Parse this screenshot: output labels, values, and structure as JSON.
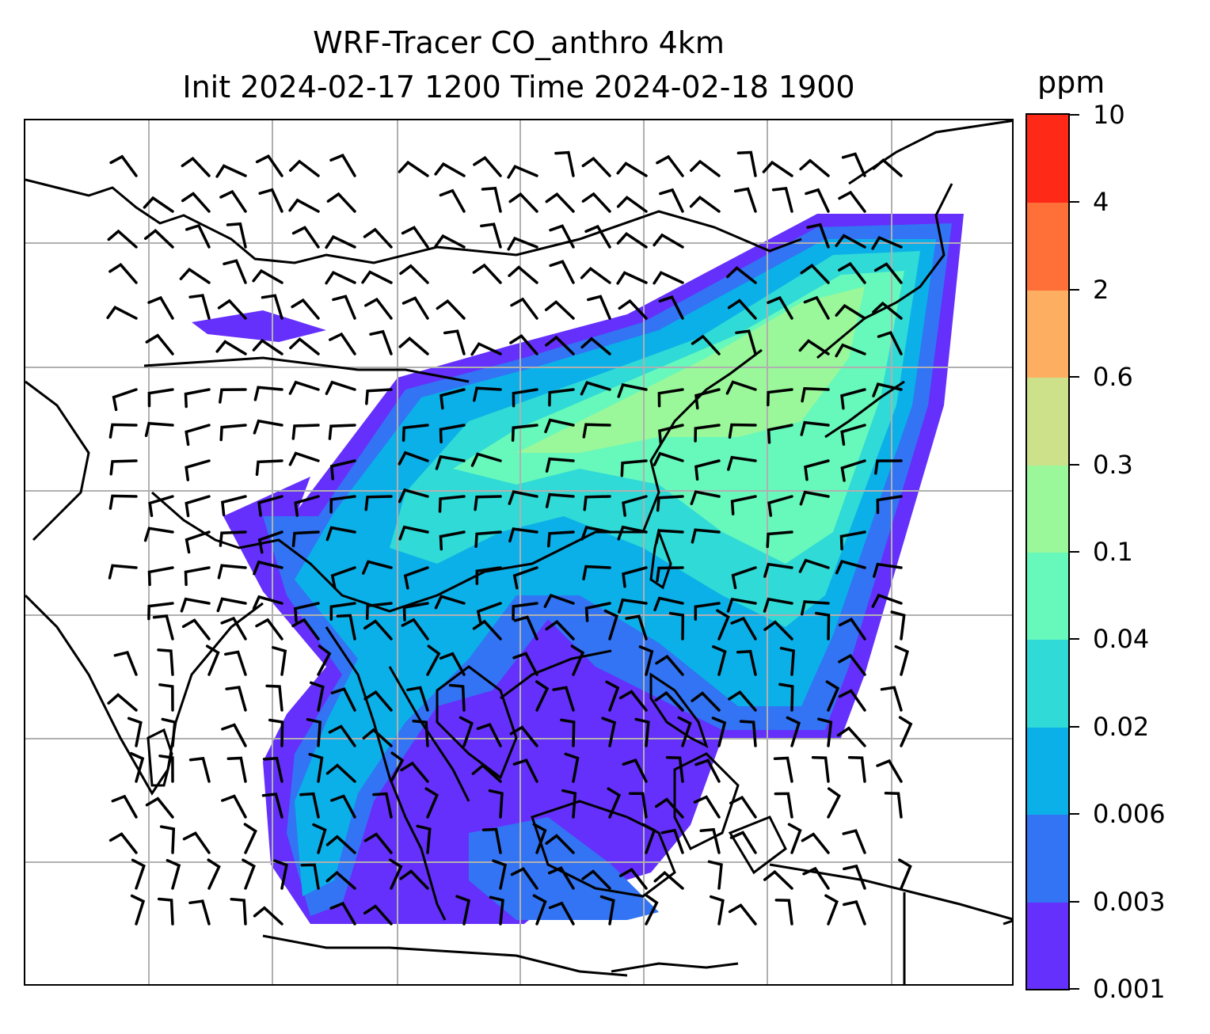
{
  "title": {
    "line1": "WRF-Tracer CO_anthro 4km",
    "line2": "Init 2024-02-17 1200 Time 2024-02-18 1900"
  },
  "colorbar": {
    "unit": "ppm",
    "levels": [
      "0.001",
      "0.003",
      "0.006",
      "0.02",
      "0.04",
      "0.1",
      "0.3",
      "0.6",
      "2",
      "4",
      "10"
    ],
    "colors": [
      "#6530fb",
      "#3274f4",
      "#0bb0e8",
      "#2fdad7",
      "#67f8bb",
      "#9af89a",
      "#cde18a",
      "#feae61",
      "#fe7038",
      "#fe2a17"
    ]
  },
  "map": {
    "gridlines": true,
    "coastline_color": "#000000",
    "grid_color": "#b0b0b0",
    "wind_barbs": true
  }
}
